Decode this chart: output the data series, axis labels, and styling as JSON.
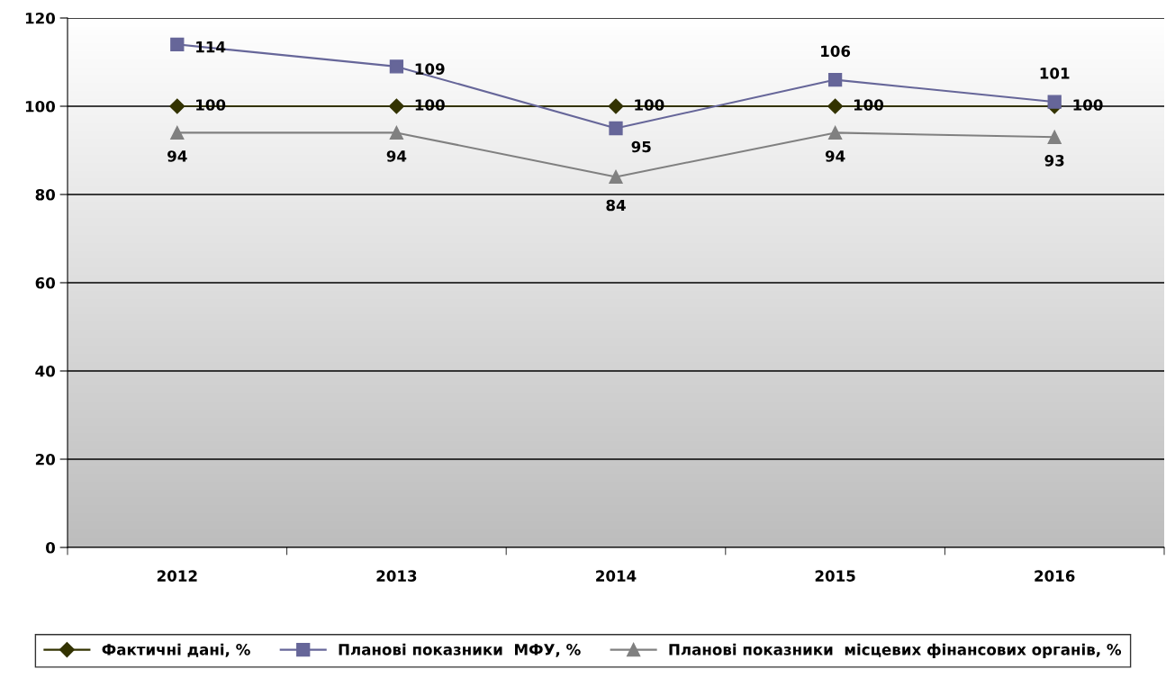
{
  "chart_data": {
    "type": "line",
    "categories": [
      "2012",
      "2013",
      "2014",
      "2015",
      "2016"
    ],
    "series": [
      {
        "name": "Фактичні дані, %",
        "color": "#333300",
        "marker": "diamond",
        "values": [
          100,
          100,
          100,
          100,
          100
        ]
      },
      {
        "name": "Планові показники  МФУ, %",
        "color": "#666699",
        "marker": "square",
        "values": [
          114,
          109,
          95,
          106,
          101
        ]
      },
      {
        "name": "Планові показники  місцевих фінансових органів, %",
        "color": "#808080",
        "marker": "triangle",
        "values": [
          94,
          94,
          84,
          94,
          93
        ]
      }
    ],
    "ylim": [
      0,
      120
    ],
    "yticks": [
      0,
      20,
      40,
      60,
      80,
      100,
      120
    ],
    "grid": "y",
    "legend": "bottom",
    "data_labels": true
  }
}
